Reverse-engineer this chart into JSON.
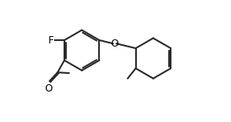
{
  "background_color": "#ffffff",
  "line_color": "#2a2a2a",
  "text_color": "#000000",
  "line_width": 1.5,
  "font_size": 9.0,
  "figsize": [
    2.87,
    1.52
  ],
  "dpi": 100,
  "xlim": [
    -0.5,
    10.5
  ],
  "ylim": [
    -0.5,
    8.5
  ]
}
